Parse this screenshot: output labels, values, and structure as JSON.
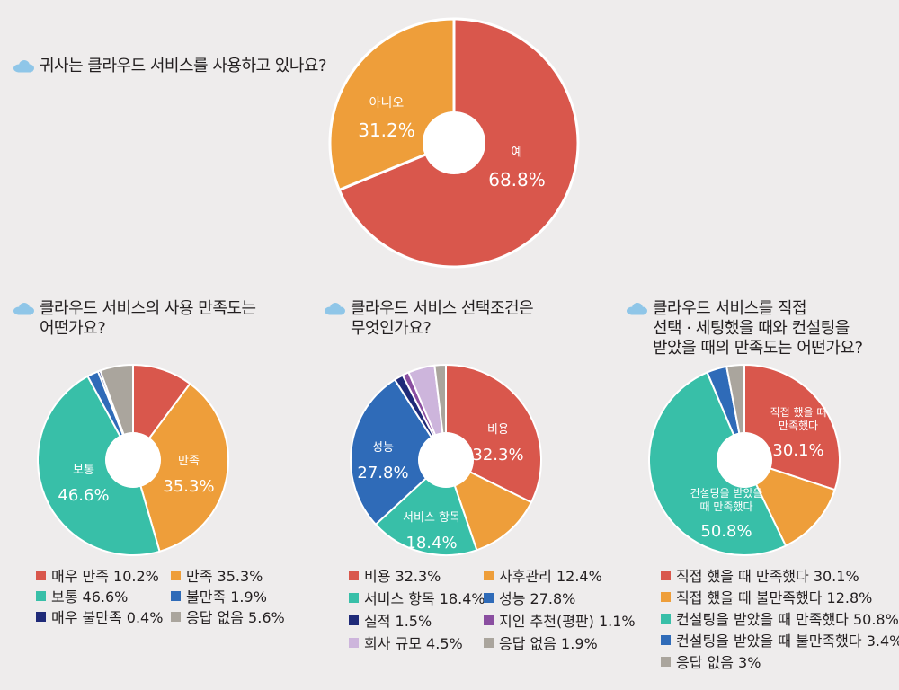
{
  "colors": {
    "red": "#d9574c",
    "orange": "#ee9e3a",
    "teal": "#38bfa8",
    "blue": "#2f6bb8",
    "navy": "#1f2a78",
    "purple": "#8a4ea0",
    "lavender": "#cdb5dc",
    "gray": "#aaa59d",
    "cloud": "#8fc6e8"
  },
  "questions": {
    "q1": "귀사는 클라우드 서비스를 사용하고 있나요?",
    "q2": [
      "클라우드 서비스의 사용 만족도는",
      "어떤가요?"
    ],
    "q3": [
      "클라우드  서비스  선택조건은",
      "무엇인가요?"
    ],
    "q4": [
      "클라우드 서비스를 직접",
      "선택 · 세팅했을 때와 컨설팅을",
      "받았을 때의 만족도는 어떤가요?"
    ]
  },
  "chart_data": [
    {
      "type": "pie",
      "title": "귀사는 클라우드 서비스를 사용하고 있나요?",
      "categories": [
        "예",
        "아니오"
      ],
      "values": [
        68.8,
        31.2
      ],
      "value_labels": [
        "68.8%",
        "31.2%"
      ],
      "colors": [
        "#d9574c",
        "#ee9e3a"
      ],
      "donut": true
    },
    {
      "type": "pie",
      "title": "클라우드 서비스의 사용 만족도는 어떤가요?",
      "categories": [
        "매우 만족",
        "만족",
        "보통",
        "불만족",
        "매우 불만족",
        "응답 없음"
      ],
      "values": [
        10.2,
        35.3,
        46.6,
        1.9,
        0.4,
        5.6
      ],
      "order": [
        "매우 만족",
        "만족",
        "보통",
        "불만족",
        "매우 불만족",
        "응답 없음"
      ],
      "colors": [
        "#d9574c",
        "#ee9e3a",
        "#38bfa8",
        "#2f6bb8",
        "#1f2a78",
        "#aaa59d"
      ],
      "slice_labels": [
        {
          "category": "만족",
          "text": "만족",
          "value": "35.3%"
        },
        {
          "category": "보통",
          "text": "보통",
          "value": "46.6%"
        }
      ],
      "legend": [
        "매우 만족 10.2%",
        "만족 35.3%",
        "보통 46.6%",
        "불만족 1.9%",
        "매우 불만족 0.4%",
        "응답 없음 5.6%"
      ],
      "donut": true
    },
    {
      "type": "pie",
      "title": "클라우드 서비스 선택조건은 무엇인가요?",
      "categories": [
        "비용",
        "사후관리",
        "서비스 항목",
        "성능",
        "실적",
        "지인 추천(평판)",
        "회사 규모",
        "응답 없음"
      ],
      "values": [
        32.3,
        12.4,
        18.4,
        27.8,
        1.5,
        1.1,
        4.5,
        1.9
      ],
      "colors": [
        "#d9574c",
        "#ee9e3a",
        "#38bfa8",
        "#2f6bb8",
        "#1f2a78",
        "#8a4ea0",
        "#cdb5dc",
        "#aaa59d"
      ],
      "slice_labels": [
        {
          "category": "비용",
          "text": "비용",
          "value": "32.3%"
        },
        {
          "category": "서비스 항목",
          "text": "서비스 항목",
          "value": "18.4%"
        },
        {
          "category": "성능",
          "text": "성능",
          "value": "27.8%"
        }
      ],
      "legend": [
        "비용 32.3%",
        "사후관리 12.4%",
        "서비스 항목 18.4%",
        "성능 27.8%",
        "실적 1.5%",
        "지인 추천(평판) 1.1%",
        "회사 규모 4.5%",
        "응답 없음 1.9%"
      ],
      "donut": true
    },
    {
      "type": "pie",
      "title": "클라우드 서비스를 직접 선택 · 세팅했을 때와 컨설팅을 받았을 때의 만족도는 어떤가요?",
      "categories": [
        "직접 했을 때 만족했다",
        "직접 했을 때 불만족했다",
        "컨설팅을 받았을 때 만족했다",
        "컨설팅을 받았을 때 불만족했다",
        "응답 없음"
      ],
      "values": [
        30.1,
        12.8,
        50.8,
        3.4,
        3
      ],
      "colors": [
        "#d9574c",
        "#ee9e3a",
        "#38bfa8",
        "#2f6bb8",
        "#aaa59d"
      ],
      "slice_labels": [
        {
          "category": "직접 했을 때 만족했다",
          "text": "직접 했을 때|만족했다",
          "value": "30.1%"
        },
        {
          "category": "컨설팅을 받았을 때 만족했다",
          "text": "컨설팅을 받았을|때 만족했다",
          "value": "50.8%"
        }
      ],
      "legend": [
        "직접 했을 때 만족했다 30.1%",
        "직접 했을 때 불만족했다 12.8%",
        "컨설팅을 받았을 때 만족했다 50.8%",
        "컨설팅을 받았을 때 불만족했다 3.4%",
        "응답 없음 3%"
      ],
      "donut": true
    }
  ]
}
